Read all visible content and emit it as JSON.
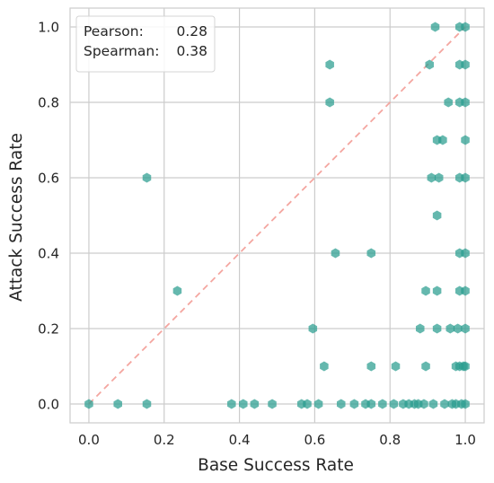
{
  "chart_data": {
    "type": "scatter",
    "xlabel": "Base Success Rate",
    "ylabel": "Attack Success Rate",
    "xlim": [
      -0.05,
      1.05
    ],
    "ylim": [
      -0.05,
      1.05
    ],
    "xticks": [
      0.0,
      0.2,
      0.4,
      0.6,
      0.8,
      1.0
    ],
    "yticks": [
      0.0,
      0.2,
      0.4,
      0.6,
      0.8,
      1.0
    ],
    "xtick_labels": [
      "0.0",
      "0.2",
      "0.4",
      "0.6",
      "0.8",
      "1.0"
    ],
    "ytick_labels": [
      "0.0",
      "0.2",
      "0.4",
      "0.6",
      "0.8",
      "1.0"
    ],
    "grid": true,
    "marker": "hexagon",
    "point_color": "#2a9d8f",
    "diagonal_color": "#f4a6a0",
    "annotation": {
      "position": "top-left",
      "lines": [
        {
          "label": "Pearson:",
          "value": "0.28"
        },
        {
          "label": "Spearman:",
          "value": "0.38"
        }
      ]
    },
    "points": [
      [
        0.0,
        0.0
      ],
      [
        0.077,
        0.0
      ],
      [
        0.154,
        0.0
      ],
      [
        0.154,
        0.6
      ],
      [
        0.235,
        0.3
      ],
      [
        0.379,
        0.0
      ],
      [
        0.41,
        0.0
      ],
      [
        0.44,
        0.0
      ],
      [
        0.487,
        0.0
      ],
      [
        0.565,
        0.0
      ],
      [
        0.58,
        0.0
      ],
      [
        0.595,
        0.2
      ],
      [
        0.61,
        0.0
      ],
      [
        0.625,
        0.1
      ],
      [
        0.64,
        0.9
      ],
      [
        0.64,
        0.8
      ],
      [
        0.655,
        0.4
      ],
      [
        0.67,
        0.0
      ],
      [
        0.705,
        0.0
      ],
      [
        0.735,
        0.0
      ],
      [
        0.75,
        0.4
      ],
      [
        0.75,
        0.1
      ],
      [
        0.75,
        0.0
      ],
      [
        0.78,
        0.0
      ],
      [
        0.81,
        0.0
      ],
      [
        0.815,
        0.1
      ],
      [
        0.835,
        0.0
      ],
      [
        0.85,
        0.0
      ],
      [
        0.865,
        0.0
      ],
      [
        0.875,
        0.0
      ],
      [
        0.88,
        0.2
      ],
      [
        0.89,
        0.0
      ],
      [
        0.895,
        0.3
      ],
      [
        0.895,
        0.1
      ],
      [
        0.905,
        0.9
      ],
      [
        0.91,
        0.6
      ],
      [
        0.915,
        0.0
      ],
      [
        0.92,
        1.0
      ],
      [
        0.925,
        0.7
      ],
      [
        0.925,
        0.5
      ],
      [
        0.925,
        0.3
      ],
      [
        0.925,
        0.2
      ],
      [
        0.93,
        0.6
      ],
      [
        0.94,
        0.7
      ],
      [
        0.945,
        0.0
      ],
      [
        0.955,
        0.8
      ],
      [
        0.96,
        0.2
      ],
      [
        0.965,
        0.0
      ],
      [
        0.975,
        0.1
      ],
      [
        0.975,
        0.0
      ],
      [
        0.98,
        0.2
      ],
      [
        0.985,
        1.0
      ],
      [
        0.985,
        0.9
      ],
      [
        0.985,
        0.8
      ],
      [
        0.985,
        0.6
      ],
      [
        0.985,
        0.4
      ],
      [
        0.985,
        0.3
      ],
      [
        0.985,
        0.1
      ],
      [
        0.99,
        0.0
      ],
      [
        0.995,
        0.1
      ],
      [
        1.0,
        1.0
      ],
      [
        1.0,
        0.9
      ],
      [
        1.0,
        0.8
      ],
      [
        1.0,
        0.7
      ],
      [
        1.0,
        0.6
      ],
      [
        1.0,
        0.4
      ],
      [
        1.0,
        0.3
      ],
      [
        1.0,
        0.2
      ],
      [
        1.0,
        0.1
      ],
      [
        1.0,
        0.0
      ]
    ]
  }
}
